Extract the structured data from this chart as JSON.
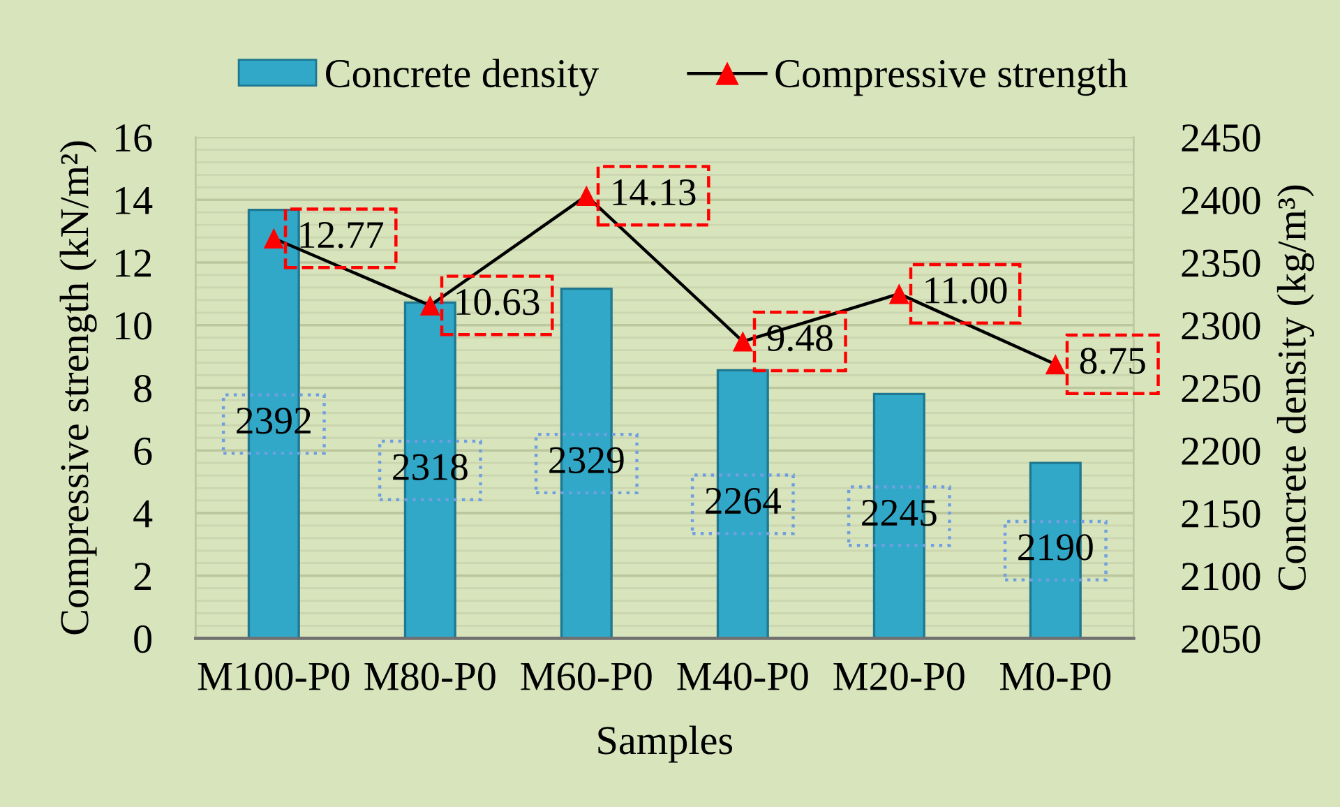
{
  "chart_data": {
    "type": "bar",
    "xlabel": "Samples",
    "ylabel": "Compressive strength (kN/m²)",
    "y2label": "Concrete density (kg/m³)",
    "categories": [
      "M100-P0",
      "M80-P0",
      "M60-P0",
      "M40-P0",
      "M20-P0",
      "M0-P0"
    ],
    "series": [
      {
        "name": "Concrete density",
        "axis": "y2",
        "color": "#31a8c8",
        "values": [
          2392,
          2318,
          2329,
          2264,
          2245,
          2190
        ],
        "value_labels": [
          "2392",
          "2318",
          "2329",
          "2264",
          "2245",
          "2190"
        ]
      },
      {
        "name": "Compressive strength",
        "type": "line",
        "axis": "y",
        "color": "#000000",
        "colors": [
          "#ff0000",
          "#ff0000",
          "#ff0000",
          "#ff0000",
          "#ff0000",
          "#ff0000"
        ],
        "marker": "triangle",
        "values": [
          12.77,
          10.63,
          14.13,
          9.48,
          11.0,
          8.75
        ],
        "value_labels": [
          "12.77",
          "10.63",
          "14.13",
          "9.48",
          "11.00",
          "8.75"
        ]
      }
    ],
    "ylim": [
      0,
      16
    ],
    "yticks": [
      0,
      2,
      4,
      6,
      8,
      10,
      12,
      14,
      16
    ],
    "y2lim": [
      2050,
      2450
    ],
    "y2ticks": [
      2050,
      2100,
      2150,
      2200,
      2250,
      2300,
      2350,
      2400,
      2450
    ],
    "grid": "y",
    "legend": "top"
  }
}
